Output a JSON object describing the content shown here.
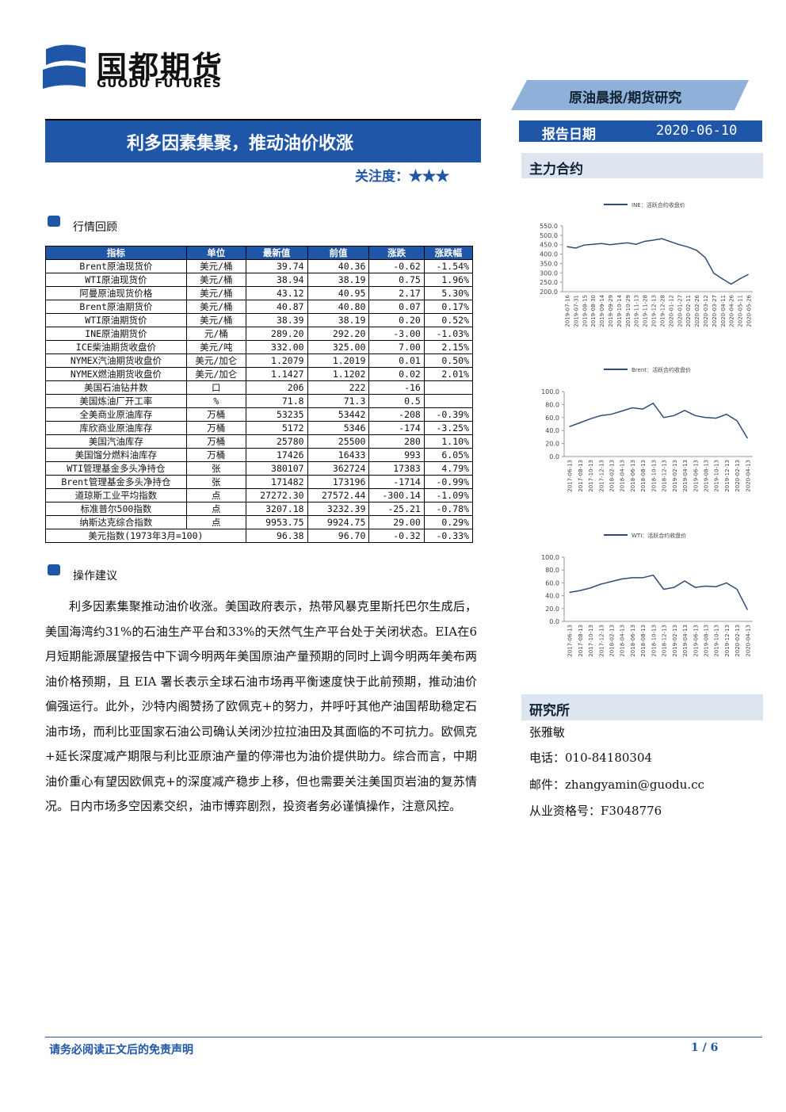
{
  "header": {
    "logo_cn": "国都期货",
    "logo_en": "GUODU FUTURES",
    "category": "原油晨报/期货研究",
    "title": "利多因素集聚，推动油价收涨",
    "attention": "关注度：★★★",
    "date_label": "报告日期",
    "date": "2020-06-10",
    "main_contract": "主力合约"
  },
  "market": {
    "title": "行情回顾",
    "table": {
      "columns": [
        "指标",
        "单位",
        "最新值",
        "前值",
        "涨跌",
        "涨跌幅"
      ],
      "rows": [
        [
          "Brent原油现货价",
          "美元/桶",
          "39.74",
          "40.36",
          "-0.62",
          "-1.54%"
        ],
        [
          "WTI原油现货价",
          "美元/桶",
          "38.94",
          "38.19",
          "0.75",
          "1.96%"
        ],
        [
          "阿曼原油现货价格",
          "美元/桶",
          "43.12",
          "40.95",
          "2.17",
          "5.30%"
        ],
        [
          "Brent原油期货价",
          "美元/桶",
          "40.87",
          "40.80",
          "0.07",
          "0.17%"
        ],
        [
          "WTI原油期货价",
          "美元/桶",
          "38.39",
          "38.19",
          "0.20",
          "0.52%"
        ],
        [
          "INE原油期货价",
          "元/桶",
          "289.20",
          "292.20",
          "-3.00",
          "-1.03%"
        ],
        [
          "ICE柴油期货收盘价",
          "美元/吨",
          "332.00",
          "325.00",
          "7.00",
          "2.15%"
        ],
        [
          "NYMEX汽油期货收盘价",
          "美元/加仑",
          "1.2079",
          "1.2019",
          "0.01",
          "0.50%"
        ],
        [
          "NYMEX燃油期货收盘价",
          "美元/加仑",
          "1.1427",
          "1.1202",
          "0.02",
          "2.01%"
        ],
        [
          "美国石油钻井数",
          "口",
          "206",
          "222",
          "-16"
        ],
        [
          "美国炼油厂开工率",
          "%",
          "71.8",
          "71.3",
          "0.5"
        ],
        [
          "全美商业原油库存",
          "万桶",
          "53235",
          "53442",
          "-208",
          "-0.39%"
        ],
        [
          "库欣商业原油库存",
          "万桶",
          "5172",
          "5346",
          "-174",
          "-3.25%"
        ],
        [
          "美国汽油库存",
          "万桶",
          "25780",
          "25500",
          "280",
          "1.10%"
        ],
        [
          "美国馏分燃料油库存",
          "万桶",
          "17426",
          "16433",
          "993",
          "6.05%"
        ],
        [
          "WTI管理基金多头净持仓",
          "张",
          "380107",
          "362724",
          "17383",
          "4.79%"
        ],
        [
          "Brent管理基金多头净持仓",
          "张",
          "171482",
          "173196",
          "-1714",
          "-0.99%"
        ],
        [
          "道琼斯工业平均指数",
          "点",
          "27272.30",
          "27572.44",
          "-300.14",
          "-1.09%"
        ],
        [
          "标准普尔500指数",
          "点",
          "3207.18",
          "3232.39",
          "-25.21",
          "-0.78%"
        ],
        [
          "纳斯达克综合指数",
          "点",
          "9953.75",
          "9924.75",
          "29.00",
          "0.29%"
        ]
      ],
      "span_row": {
        "label": "美元指数(1973年3月=100)",
        "values": [
          "96.38",
          "96.70",
          "-0.32",
          "-0.33%"
        ]
      }
    }
  },
  "advice": {
    "title": "操作建议",
    "text": "利多因素集聚推动油价收涨。美国政府表示，热带风暴克里斯托巴尔生成后，美国海湾约31%的石油生产平台和33%的天然气生产平台处于关闭状态。EIA在6月短期能源展望报告中下调今明两年美国原油产量预期的同时上调今明两年美布两油价格预期，且 EIA 署长表示全球石油市场再平衡速度快于此前预期，推动油价偏强运行。此外，沙特内阁赞扬了欧佩克+的努力，并呼吁其他产油国帮助稳定石油市场，而利比亚国家石油公司确认关闭沙拉拉油田及其面临的不可抗力。欧佩克+延长深度减产期限与利比亚原油产量的停滞也为油价提供助力。综合而言，中期油价重心有望因欧佩克+的深度减产稳步上移，但也需要关注美国页岩油的复苏情况。日内市场多空因素交织，油市博弈剧烈，投资者务必谨慎操作，注意风控。"
  },
  "research": {
    "title": "研究所",
    "name": "张雅敏",
    "phone": "电话：010-84180304",
    "email": "邮件：zhangyamin@guodu.cc",
    "license": "从业资格号：F3048776"
  },
  "footer": {
    "disclaimer": "请务必阅读正文后的免责声明",
    "page": "1 / 6"
  },
  "chart_data": [
    {
      "type": "line",
      "series": [
        {
          "name": "INE：活跃合约收盘价",
          "color": "#2e4a7a",
          "values": [
            440,
            432,
            448,
            452,
            456,
            450,
            455,
            460,
            452,
            468,
            474,
            482,
            466,
            450,
            438,
            420,
            382,
            298,
            268,
            240,
            268,
            292
          ]
        }
      ],
      "x": [
        "2019-07-16",
        "2019-07-31",
        "2019-08-15",
        "2019-08-30",
        "2019-09-14",
        "2019-09-29",
        "2019-10-14",
        "2019-10-29",
        "2019-11-13",
        "2019-11-28",
        "2019-12-13",
        "2019-12-28",
        "2020-01-12",
        "2020-01-27",
        "2020-02-11",
        "2020-02-26",
        "2020-03-12",
        "2020-03-27",
        "2020-04-11",
        "2020-04-26",
        "2020-05-11",
        "2020-05-26"
      ],
      "ylim": [
        200,
        550
      ],
      "yticks": [
        {
          "value": 200,
          "label": "200.0"
        },
        {
          "value": 250,
          "label": "250.0"
        },
        {
          "value": 300,
          "label": "300.0"
        },
        {
          "value": 350,
          "label": "350.0"
        },
        {
          "value": 400,
          "label": "400.0"
        },
        {
          "value": 450,
          "label": "450.0"
        },
        {
          "value": 500,
          "label": "500.0"
        },
        {
          "value": 550,
          "label": "550.0"
        }
      ]
    },
    {
      "type": "line",
      "series": [
        {
          "name": "Brent：活跃合约收盘价",
          "color": "#2e4a7a",
          "values": [
            46,
            52,
            58,
            63,
            65,
            70,
            75,
            73,
            82,
            60,
            63,
            71,
            63,
            60,
            59,
            65,
            55,
            28
          ]
        }
      ],
      "x": [
        "2017-06-13",
        "2017-08-13",
        "2017-10-13",
        "2017-12-13",
        "2018-02-13",
        "2018-04-13",
        "2018-06-13",
        "2018-08-13",
        "2018-10-13",
        "2018-12-13",
        "2019-02-13",
        "2019-04-13",
        "2019-06-13",
        "2019-08-13",
        "2019-10-13",
        "2019-12-13",
        "2020-02-13",
        "2020-04-13"
      ],
      "ylim": [
        0,
        100
      ],
      "yticks": [
        {
          "value": 0,
          "label": "0.0"
        },
        {
          "value": 20,
          "label": "20.0"
        },
        {
          "value": 40,
          "label": "40.0"
        },
        {
          "value": 60,
          "label": "60.0"
        },
        {
          "value": 80,
          "label": "80.0"
        },
        {
          "value": 100,
          "label": "100.0"
        }
      ]
    },
    {
      "type": "line",
      "series": [
        {
          "name": "WTI：活跃合约收盘价",
          "color": "#2e4a7a",
          "values": [
            45,
            48,
            52,
            58,
            62,
            66,
            68,
            68,
            72,
            50,
            53,
            63,
            53,
            55,
            54,
            60,
            50,
            18
          ]
        }
      ],
      "x": [
        "2017-06-13",
        "2017-08-13",
        "2017-10-13",
        "2017-12-13",
        "2018-02-13",
        "2018-04-13",
        "2018-06-13",
        "2018-08-13",
        "2018-10-13",
        "2018-12-13",
        "2019-02-13",
        "2019-04-13",
        "2019-06-13",
        "2019-08-13",
        "2019-10-13",
        "2019-12-13",
        "2020-02-13",
        "2020-04-13"
      ],
      "ylim": [
        0,
        100
      ],
      "yticks": [
        {
          "value": 0,
          "label": "0.0"
        },
        {
          "value": 20,
          "label": "20.0"
        },
        {
          "value": 40,
          "label": "40.0"
        },
        {
          "value": 60,
          "label": "60.0"
        },
        {
          "value": 80,
          "label": "80.0"
        },
        {
          "value": 100,
          "label": "100.0"
        }
      ]
    }
  ]
}
